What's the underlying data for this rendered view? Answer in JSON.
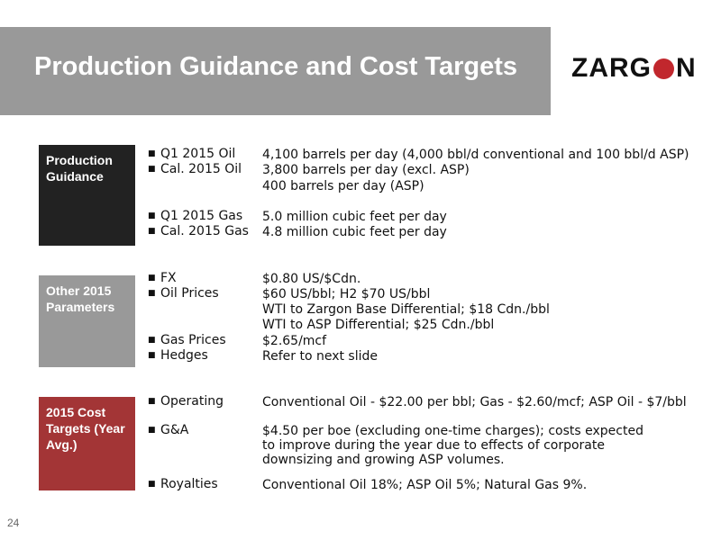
{
  "title": "Production Guidance and Cost Targets",
  "logo": {
    "text_left": "ZARG",
    "text_right": "N",
    "accent_color": "#c1272d"
  },
  "sections": {
    "production": {
      "heading": "Production Guidance",
      "items": [
        {
          "label": "Q1 2015 Oil",
          "value": "4,100 barrels  per day (4,000 bbl/d conventional and 100 bbl/d ASP)"
        },
        {
          "label": "Cal. 2015 Oil",
          "value": "3,800 barrels per day (excl. ASP)",
          "value2": "400 barrels per day (ASP)"
        },
        {
          "label": "Q1 2015 Gas",
          "value": "5.0 million cubic feet per day"
        },
        {
          "label": "Cal. 2015 Gas",
          "value": "4.8 million cubic feet per day"
        }
      ]
    },
    "parameters": {
      "heading": "Other 2015 Parameters",
      "items": [
        {
          "label": "FX",
          "value": "$0.80 US/$Cdn."
        },
        {
          "label": "Oil Prices",
          "value": "$60 US/bbl; H2 $70 US/bbl",
          "value2": "WTI to Zargon Base Differential; $18 Cdn./bbl",
          "value3": "WTI to ASP Differential; $25 Cdn./bbl"
        },
        {
          "label": "Gas Prices",
          "value": "$2.65/mcf"
        },
        {
          "label": "Hedges",
          "value": "Refer to next slide"
        }
      ]
    },
    "costs": {
      "heading": "2015 Cost Targets (Year Avg.)",
      "items": [
        {
          "label": "Operating",
          "value": "Conventional Oil - $22.00 per bbl; Gas - $2.60/mcf; ASP Oil - $7/bbl"
        },
        {
          "label": "G&A",
          "value": "$4.50 per boe (excluding one-time charges); costs expected to improve during the year due to effects of corporate downsizing and growing ASP volumes."
        },
        {
          "label": "Royalties",
          "value": "Conventional Oil 18%; ASP Oil 5%; Natural Gas 9%."
        }
      ]
    }
  },
  "page_number": "24"
}
